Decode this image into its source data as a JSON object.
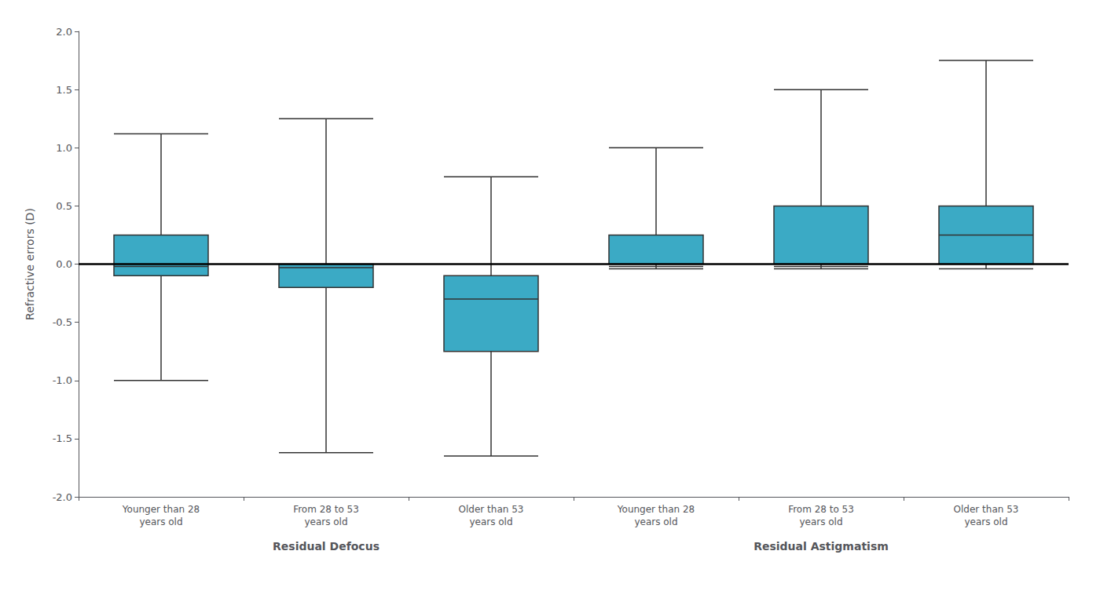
{
  "chart_data": {
    "type": "boxplot",
    "ylabel": "Refractive errors (D)",
    "categories": [
      "Younger than 28\nyears old",
      "From 28 to 53\nyears old",
      "Older than 53\nyears old",
      "Younger than 28\nyears old",
      "From 28 to 53\nyears old",
      "Older than 53\nyears old"
    ],
    "category_groups": [
      "Residual Defocus",
      "Residual Defocus",
      "Residual Defocus",
      "Residual Astigmatism",
      "Residual Astigmatism",
      "Residual Astigmatism"
    ],
    "whisker_low": [
      -1.0,
      -1.62,
      -1.65,
      -0.04,
      -0.04,
      -0.04
    ],
    "q1": [
      -0.1,
      -0.2,
      -0.75,
      0.0,
      0.0,
      0.0
    ],
    "median": [
      -0.02,
      -0.03,
      -0.3,
      -0.02,
      -0.02,
      0.25
    ],
    "q3": [
      0.25,
      0.0,
      -0.1,
      0.25,
      0.5,
      0.5
    ],
    "whisker_high": [
      1.12,
      1.25,
      0.75,
      1.0,
      1.5,
      1.75
    ],
    "color": "#3BAAC5",
    "ylim": [
      -2.0,
      2.0
    ],
    "yticks": [
      {
        "value": -2.0,
        "label": "-2.0"
      },
      {
        "value": -1.5,
        "label": "-1.5"
      },
      {
        "value": -1.0,
        "label": "-1.0"
      },
      {
        "value": -0.5,
        "label": "-0.5"
      },
      {
        "value": 0.0,
        "label": "0.0"
      },
      {
        "value": 0.5,
        "label": "0.5"
      },
      {
        "value": 1.0,
        "label": "1.0"
      },
      {
        "value": 1.5,
        "label": "1.5"
      },
      {
        "value": 2.0,
        "label": "2.0"
      }
    ],
    "grid": false,
    "hline": 0
  }
}
